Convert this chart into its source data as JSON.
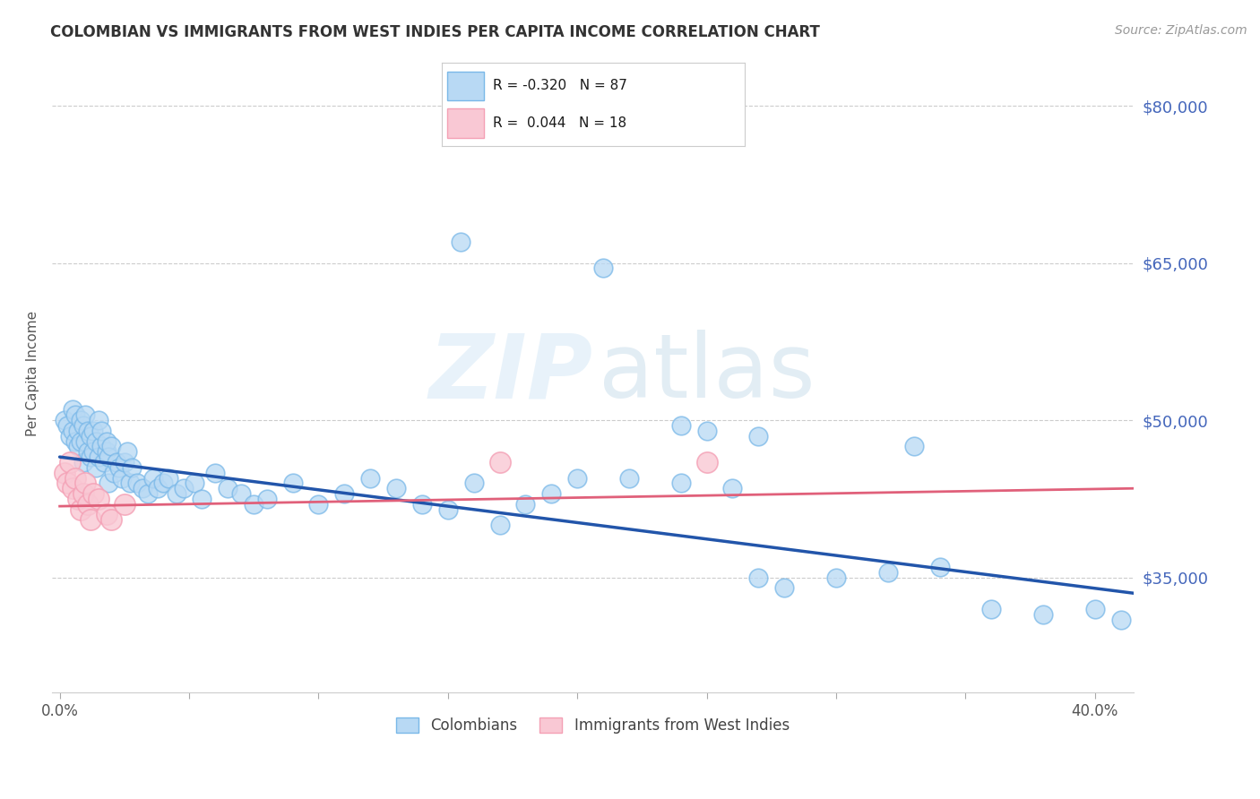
{
  "title": "COLOMBIAN VS IMMIGRANTS FROM WEST INDIES PER CAPITA INCOME CORRELATION CHART",
  "source": "Source: ZipAtlas.com",
  "ylabel": "Per Capita Income",
  "ytick_labels": [
    "$35,000",
    "$50,000",
    "$65,000",
    "$80,000"
  ],
  "ytick_values": [
    35000,
    50000,
    65000,
    80000
  ],
  "ymin": 24000,
  "ymax": 85000,
  "xmin": -0.003,
  "xmax": 0.415,
  "blue_color": "#7ab8e8",
  "blue_fill": "#b8d9f4",
  "pink_color": "#f4a0b5",
  "pink_fill": "#f9c8d4",
  "line_blue": "#2255aa",
  "line_pink": "#e0607a",
  "colombians_x": [
    0.002,
    0.003,
    0.004,
    0.005,
    0.005,
    0.006,
    0.006,
    0.007,
    0.007,
    0.008,
    0.008,
    0.009,
    0.009,
    0.01,
    0.01,
    0.011,
    0.011,
    0.012,
    0.012,
    0.013,
    0.013,
    0.014,
    0.014,
    0.015,
    0.015,
    0.016,
    0.016,
    0.017,
    0.018,
    0.018,
    0.019,
    0.019,
    0.02,
    0.021,
    0.022,
    0.023,
    0.024,
    0.025,
    0.026,
    0.027,
    0.028,
    0.03,
    0.032,
    0.034,
    0.036,
    0.038,
    0.04,
    0.042,
    0.045,
    0.048,
    0.052,
    0.055,
    0.06,
    0.065,
    0.07,
    0.075,
    0.08,
    0.09,
    0.1,
    0.11,
    0.12,
    0.13,
    0.14,
    0.15,
    0.16,
    0.17,
    0.18,
    0.19,
    0.2,
    0.22,
    0.24,
    0.25,
    0.26,
    0.27,
    0.28,
    0.3,
    0.32,
    0.34,
    0.36,
    0.38,
    0.4,
    0.41,
    0.155,
    0.21,
    0.24,
    0.27,
    0.33
  ],
  "colombians_y": [
    50000,
    49500,
    48500,
    51000,
    49000,
    50500,
    48000,
    49000,
    47500,
    50000,
    48000,
    49500,
    46000,
    48000,
    50500,
    47000,
    49000,
    46500,
    48500,
    47000,
    49000,
    45500,
    48000,
    46500,
    50000,
    47500,
    49000,
    46000,
    47000,
    48000,
    44000,
    46500,
    47500,
    45000,
    46000,
    45500,
    44500,
    46000,
    47000,
    44000,
    45500,
    44000,
    43500,
    43000,
    44500,
    43500,
    44000,
    44500,
    43000,
    43500,
    44000,
    42500,
    45000,
    43500,
    43000,
    42000,
    42500,
    44000,
    42000,
    43000,
    44500,
    43500,
    42000,
    41500,
    44000,
    40000,
    42000,
    43000,
    44500,
    44500,
    44000,
    49000,
    43500,
    35000,
    34000,
    35000,
    35500,
    36000,
    32000,
    31500,
    32000,
    31000,
    67000,
    64500,
    49500,
    48500,
    47500
  ],
  "westindies_x": [
    0.002,
    0.003,
    0.004,
    0.005,
    0.006,
    0.007,
    0.008,
    0.009,
    0.01,
    0.011,
    0.012,
    0.013,
    0.015,
    0.018,
    0.02,
    0.025,
    0.17,
    0.25
  ],
  "westindies_y": [
    45000,
    44000,
    46000,
    43500,
    44500,
    42500,
    41500,
    43000,
    44000,
    42000,
    40500,
    43000,
    42500,
    41000,
    40500,
    42000,
    46000,
    46000
  ],
  "blue_trend_x": [
    0.0,
    0.415
  ],
  "blue_trend_y": [
    46500,
    33500
  ],
  "pink_trend_x": [
    0.0,
    0.415
  ],
  "pink_trend_y": [
    41800,
    43500
  ],
  "xtick_positions": [
    0.0,
    0.05,
    0.1,
    0.15,
    0.2,
    0.25,
    0.3,
    0.35,
    0.4
  ],
  "grid_color": "#cccccc",
  "background_color": "#ffffff",
  "title_color": "#333333",
  "right_axis_color": "#4466bb"
}
